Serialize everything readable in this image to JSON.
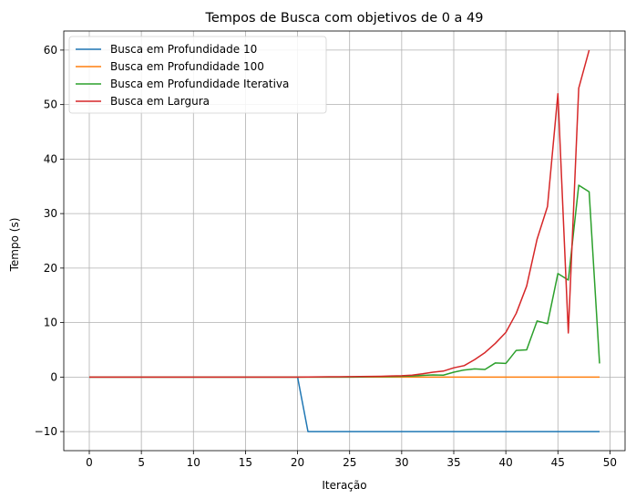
{
  "chart_data": {
    "type": "line",
    "title": "Tempos de Busca com objetivos de 0 a 49",
    "xlabel": "Iteração",
    "ylabel": "Tempo (s)",
    "xlim": [
      -2.45,
      51.45
    ],
    "ylim": [
      -13.5,
      63.5
    ],
    "xticks": [
      0,
      5,
      10,
      15,
      20,
      25,
      30,
      35,
      40,
      45,
      50
    ],
    "yticks": [
      -10,
      0,
      10,
      20,
      30,
      40,
      50,
      60
    ],
    "grid": true,
    "legend_position": "top-left",
    "x": [
      0,
      1,
      2,
      3,
      4,
      5,
      6,
      7,
      8,
      9,
      10,
      11,
      12,
      13,
      14,
      15,
      16,
      17,
      18,
      19,
      20,
      21,
      22,
      23,
      24,
      25,
      26,
      27,
      28,
      29,
      30,
      31,
      32,
      33,
      34,
      35,
      36,
      37,
      38,
      39,
      40,
      41,
      42,
      43,
      44,
      45,
      46,
      47,
      48,
      49
    ],
    "series": [
      {
        "name": "Busca em Profundidade 10",
        "color": "#1f77b4",
        "values": [
          0,
          0,
          0,
          0,
          0,
          0,
          0,
          0,
          0,
          0,
          0,
          0,
          0,
          0,
          0,
          0,
          0,
          0,
          0,
          0,
          0,
          -10,
          -10,
          -10,
          -10,
          -10,
          -10,
          -10,
          -10,
          -10,
          -10,
          -10,
          -10,
          -10,
          -10,
          -10,
          -10,
          -10,
          -10,
          -10,
          -10,
          -10,
          -10,
          -10,
          -10,
          -10,
          -10,
          -10,
          -10,
          -10
        ]
      },
      {
        "name": "Busca em Profundidade 100",
        "color": "#ff7f0e",
        "values": [
          0,
          0,
          0,
          0,
          0,
          0,
          0,
          0,
          0,
          0,
          0,
          0,
          0,
          0,
          0,
          0,
          0,
          0,
          0,
          0,
          0,
          0,
          0,
          0,
          0,
          0,
          0,
          0,
          0,
          0,
          0,
          0,
          0,
          0,
          0,
          0,
          0,
          0,
          0,
          0,
          0,
          0,
          0,
          0,
          0,
          0,
          0,
          0,
          0,
          0
        ]
      },
      {
        "name": "Busca em Profundidade Iterativa",
        "color": "#2ca02c",
        "values": [
          0,
          0,
          0,
          0,
          0,
          0,
          0,
          0,
          0,
          0,
          0,
          0,
          0,
          0,
          0,
          0,
          0,
          0,
          0,
          0,
          0,
          0,
          0,
          0,
          0,
          0,
          0.02,
          0.05,
          0.08,
          0.1,
          0.15,
          0.2,
          0.3,
          0.4,
          0.35,
          0.9,
          1.3,
          1.5,
          1.4,
          2.6,
          2.5,
          4.9,
          5.0,
          10.3,
          9.8,
          19.0,
          17.8,
          35.2,
          34.0,
          2.5
        ]
      },
      {
        "name": "Busca em Largura",
        "color": "#d62728",
        "values": [
          0,
          0,
          0,
          0,
          0,
          0,
          0,
          0,
          0,
          0,
          0,
          0,
          0,
          0,
          0,
          0,
          0,
          0,
          0,
          0,
          0,
          0.02,
          0.03,
          0.05,
          0.06,
          0.08,
          0.1,
          0.12,
          0.15,
          0.2,
          0.25,
          0.35,
          0.6,
          0.9,
          1.1,
          1.7,
          2.1,
          3.2,
          4.5,
          6.2,
          8.2,
          11.7,
          16.7,
          25.3,
          31.3,
          52.0,
          8.1,
          53.0,
          60.0,
          null
        ]
      }
    ]
  }
}
